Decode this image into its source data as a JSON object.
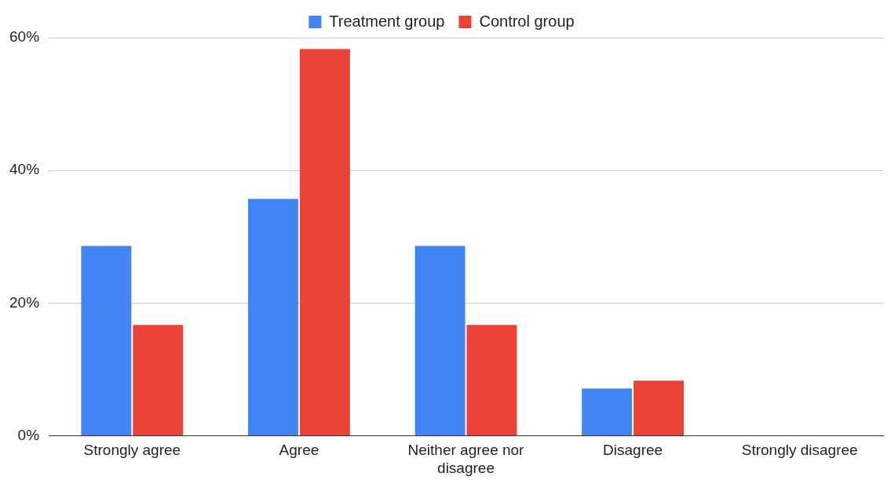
{
  "chart_data": {
    "type": "bar",
    "categories": [
      "Strongly agree",
      "Agree",
      "Neither agree nor disagree",
      "Disagree",
      "Strongly disagree"
    ],
    "series": [
      {
        "name": "Treatment group",
        "color": "#4285f4",
        "values": [
          28.6,
          35.7,
          28.6,
          7.1,
          0
        ]
      },
      {
        "name": "Control group",
        "color": "#ea4335",
        "values": [
          16.7,
          58.3,
          16.7,
          8.3,
          0
        ]
      }
    ],
    "ylim": [
      0,
      60
    ],
    "yticks": [
      {
        "value": 0,
        "label": "0%"
      },
      {
        "value": 20,
        "label": "20%"
      },
      {
        "value": 40,
        "label": "40%"
      },
      {
        "value": 60,
        "label": "60%"
      }
    ],
    "grid": "y",
    "legend": "top"
  }
}
